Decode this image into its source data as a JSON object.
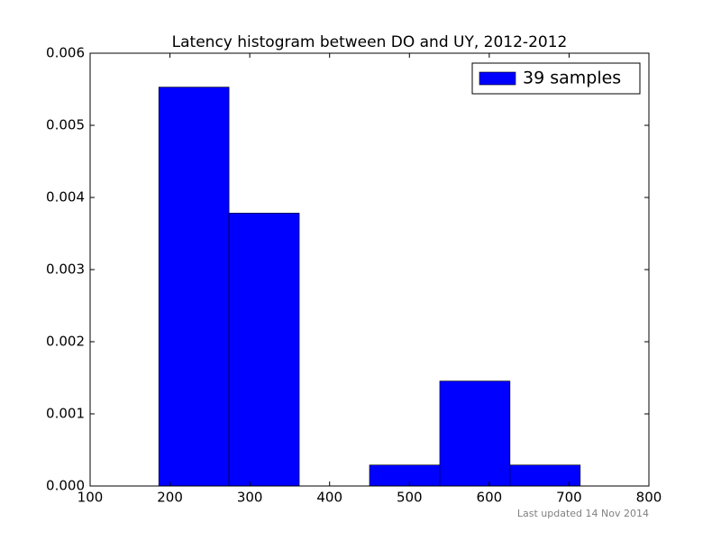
{
  "chart_data": {
    "type": "histogram",
    "title": "Latency histogram between DO and UY, 2012-2012",
    "bins": [
      186,
      274,
      362,
      450,
      538,
      626,
      714
    ],
    "series": [
      {
        "name": "39 samples",
        "color": "#0000ff",
        "values": [
          0.00553,
          0.003784,
          0,
          0.000291,
          0.001455,
          0.000291
        ]
      }
    ],
    "xlim": [
      100,
      800
    ],
    "ylim": [
      0,
      0.006
    ],
    "xticks": [
      100,
      200,
      300,
      400,
      500,
      600,
      700,
      800
    ],
    "yticks": [
      {
        "value": 0,
        "label": "0.000"
      },
      {
        "value": 0.001,
        "label": "0.001"
      },
      {
        "value": 0.002,
        "label": "0.002"
      },
      {
        "value": 0.003,
        "label": "0.003"
      },
      {
        "value": 0.004,
        "label": "0.004"
      },
      {
        "value": 0.005,
        "label": "0.005"
      },
      {
        "value": 0.006,
        "label": "0.006"
      }
    ],
    "legend": "upper right",
    "footnote": "Last updated 14 Nov 2014"
  }
}
